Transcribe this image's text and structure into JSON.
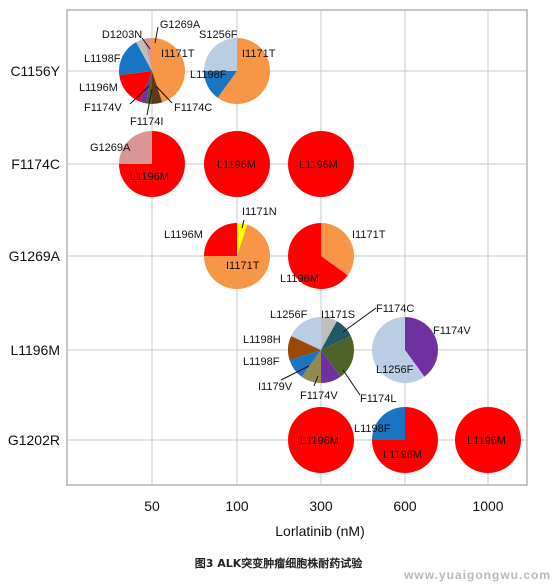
{
  "chart_data": {
    "type": "scatter",
    "subtype": "pie-matrix",
    "xlabel": "Lorlatinib (nM)",
    "x_ticks": [
      "50",
      "100",
      "300",
      "600",
      "1000"
    ],
    "y_ticks": [
      "C1156Y",
      "F1174C",
      "G1269A",
      "L1196M",
      "G1202R"
    ],
    "grid": true,
    "colors": {
      "red": "#ff0000",
      "orange": "#f79646",
      "blue": "#1a74c4",
      "lightblue": "#b9cde4",
      "pink": "#d99694",
      "yellow": "#ffff00",
      "purple": "#7030a0",
      "darkbrown": "#5b3a1a",
      "brown": "#984807",
      "darkteal": "#215868",
      "olive": "#4f6228",
      "khaki": "#938953",
      "grey": "#bfbfbf"
    },
    "pies": [
      {
        "x": "50",
        "y": "C1156Y",
        "slices": [
          {
            "label": "I1171T",
            "value": 45,
            "color": "orange"
          },
          {
            "label": "F1174C",
            "value": 5,
            "color": "darkbrown"
          },
          {
            "label": "F1174I",
            "value": 3,
            "color": "olive"
          },
          {
            "label": "F1174V",
            "value": 3,
            "color": "purple"
          },
          {
            "label": "L1196M",
            "value": 17,
            "color": "red"
          },
          {
            "label": "L1198F",
            "value": 19,
            "color": "blue"
          },
          {
            "label": "D1203N",
            "value": 4,
            "color": "grey"
          },
          {
            "label": "G1269A",
            "value": 4,
            "color": "pink"
          }
        ]
      },
      {
        "x": "100",
        "y": "C1156Y",
        "slices": [
          {
            "label": "I1171T",
            "value": 60,
            "color": "orange"
          },
          {
            "label": "L1198F",
            "value": 15,
            "color": "blue"
          },
          {
            "label": "S1256F",
            "value": 25,
            "color": "lightblue"
          }
        ]
      },
      {
        "x": "50",
        "y": "F1174C",
        "slices": [
          {
            "label": "L1196M",
            "value": 75,
            "color": "red"
          },
          {
            "label": "G1269A",
            "value": 25,
            "color": "pink"
          }
        ]
      },
      {
        "x": "100",
        "y": "F1174C",
        "slices": [
          {
            "label": "L1196M",
            "value": 100,
            "color": "red"
          }
        ]
      },
      {
        "x": "300",
        "y": "F1174C",
        "slices": [
          {
            "label": "L1196M",
            "value": 100,
            "color": "red"
          }
        ]
      },
      {
        "x": "100",
        "y": "G1269A",
        "slices": [
          {
            "label": "I1171N",
            "value": 5,
            "color": "yellow"
          },
          {
            "label": "I1171T",
            "value": 70,
            "color": "orange"
          },
          {
            "label": "L1196M",
            "value": 25,
            "color": "red"
          }
        ]
      },
      {
        "x": "300",
        "y": "G1269A",
        "slices": [
          {
            "label": "I1171T",
            "value": 35,
            "color": "orange"
          },
          {
            "label": "L1196M",
            "value": 65,
            "color": "red"
          }
        ]
      },
      {
        "x": "300",
        "y": "L1196M",
        "slices": [
          {
            "label": "I1171S",
            "value": 8,
            "color": "grey"
          },
          {
            "label": "F1174C",
            "value": 10,
            "color": "darkteal"
          },
          {
            "label": "F1174L",
            "value": 22,
            "color": "olive"
          },
          {
            "label": "F1174V",
            "value": 10,
            "color": "purple"
          },
          {
            "label": "I1179V",
            "value": 10,
            "color": "khaki"
          },
          {
            "label": "L1198F",
            "value": 10,
            "color": "blue"
          },
          {
            "label": "L1198H",
            "value": 12,
            "color": "brown"
          },
          {
            "label": "L1256F",
            "value": 18,
            "color": "lightblue"
          }
        ]
      },
      {
        "x": "600",
        "y": "L1196M",
        "slices": [
          {
            "label": "F1174V",
            "value": 40,
            "color": "purple"
          },
          {
            "label": "L1256F",
            "value": 60,
            "color": "lightblue"
          }
        ]
      },
      {
        "x": "300",
        "y": "G1202R",
        "slices": [
          {
            "label": "L1196M",
            "value": 100,
            "color": "red"
          }
        ]
      },
      {
        "x": "600",
        "y": "G1202R",
        "slices": [
          {
            "label": "L1196M",
            "value": 75,
            "color": "red"
          },
          {
            "label": "L1198F",
            "value": 25,
            "color": "blue"
          }
        ]
      },
      {
        "x": "1000",
        "y": "G1202R",
        "slices": [
          {
            "label": "L1196M",
            "value": 100,
            "color": "red"
          }
        ]
      }
    ],
    "labels": [
      {
        "text": "D1203N",
        "x": "50",
        "y": "C1156Y",
        "dx": -30,
        "dy": -37,
        "anchor": "middle",
        "line": [
          -10,
          -33,
          -2,
          -22
        ]
      },
      {
        "text": "G1269A",
        "x": "50",
        "y": "C1156Y",
        "dx": 28,
        "dy": -47,
        "anchor": "middle",
        "line": [
          6,
          -44,
          3,
          -28
        ]
      },
      {
        "text": "I1171T",
        "x": "50",
        "y": "C1156Y",
        "dx": 9,
        "dy": -18,
        "anchor": "start"
      },
      {
        "text": "L1198F",
        "x": "50",
        "y": "C1156Y",
        "dx": -68,
        "dy": -13,
        "anchor": "start"
      },
      {
        "text": "L1196M",
        "x": "50",
        "y": "C1156Y",
        "dx": -73,
        "dy": 16,
        "anchor": "start"
      },
      {
        "text": "F1174V",
        "x": "50",
        "y": "C1156Y",
        "dx": -68,
        "dy": 36,
        "anchor": "start",
        "line": [
          -22,
          33,
          -3,
          15
        ]
      },
      {
        "text": "F1174I",
        "x": "50",
        "y": "C1156Y",
        "dx": -22,
        "dy": 50,
        "anchor": "start",
        "line": [
          -5,
          44,
          0,
          18
        ]
      },
      {
        "text": "F1174C",
        "x": "50",
        "y": "C1156Y",
        "dx": 22,
        "dy": 36,
        "anchor": "start",
        "line": [
          20,
          32,
          4,
          15
        ]
      },
      {
        "text": "S1256F",
        "x": "100",
        "y": "C1156Y",
        "dx": -38,
        "dy": -37,
        "anchor": "start"
      },
      {
        "text": "I1171T",
        "x": "100",
        "y": "C1156Y",
        "dx": 5,
        "dy": -18,
        "anchor": "start"
      },
      {
        "text": "L1198F",
        "x": "100",
        "y": "C1156Y",
        "dx": -47,
        "dy": 3,
        "anchor": "start"
      },
      {
        "text": "G1269A",
        "x": "50",
        "y": "F1174C",
        "dx": -62,
        "dy": -17,
        "anchor": "start"
      },
      {
        "text": "L1196M",
        "x": "50",
        "y": "F1174C",
        "dx": -22,
        "dy": 12,
        "anchor": "start"
      },
      {
        "text": "L1196M",
        "x": "100",
        "y": "F1174C",
        "dx": -20,
        "dy": 0,
        "anchor": "start"
      },
      {
        "text": "L1196M",
        "x": "300",
        "y": "F1174C",
        "dx": -22,
        "dy": 0,
        "anchor": "start"
      },
      {
        "text": "I1171N",
        "x": "100",
        "y": "G1269A",
        "dx": 5,
        "dy": -45,
        "anchor": "start",
        "line": [
          7,
          -36,
          5,
          -28
        ]
      },
      {
        "text": "L1196M",
        "x": "100",
        "y": "G1269A",
        "dx": -73,
        "dy": -22,
        "anchor": "start"
      },
      {
        "text": "I1171T",
        "x": "100",
        "y": "G1269A",
        "dx": -11,
        "dy": 9,
        "anchor": "start"
      },
      {
        "text": "I1171T",
        "x": "300",
        "y": "G1269A",
        "dx": 31,
        "dy": -22,
        "anchor": "start"
      },
      {
        "text": "L1196M",
        "x": "300",
        "y": "G1269A",
        "dx": -41,
        "dy": 22,
        "anchor": "start"
      },
      {
        "text": "L1256F",
        "x": "300",
        "y": "L1196M",
        "dx": -51,
        "dy": -36,
        "anchor": "start"
      },
      {
        "text": "I1171S",
        "x": "300",
        "y": "L1196M",
        "dx": 0,
        "dy": -36,
        "anchor": "start"
      },
      {
        "text": "F1174C",
        "x": "300",
        "y": "L1196M",
        "dx": 55,
        "dy": -42,
        "anchor": "start",
        "line": [
          55,
          -42,
          22,
          -18
        ]
      },
      {
        "text": "L1198H",
        "x": "300",
        "y": "L1196M",
        "dx": -78,
        "dy": -11,
        "anchor": "start"
      },
      {
        "text": "L1198F",
        "x": "300",
        "y": "L1196M",
        "dx": -78,
        "dy": 11,
        "anchor": "start"
      },
      {
        "text": "I1179V",
        "x": "300",
        "y": "L1196M",
        "dx": -63,
        "dy": 36,
        "anchor": "start",
        "line": [
          -40,
          30,
          -12,
          16
        ]
      },
      {
        "text": "F1174V",
        "x": "300",
        "y": "L1196M",
        "dx": -21,
        "dy": 45,
        "anchor": "start",
        "line": [
          -7,
          36,
          -3,
          26
        ]
      },
      {
        "text": "F1174L",
        "x": "300",
        "y": "L1196M",
        "dx": 39,
        "dy": 48,
        "anchor": "start",
        "line": [
          39,
          45,
          22,
          20
        ]
      },
      {
        "text": "F1174V",
        "x": "600",
        "y": "L1196M",
        "dx": 28,
        "dy": -20,
        "anchor": "start"
      },
      {
        "text": "L1256F",
        "x": "600",
        "y": "L1196M",
        "dx": -29,
        "dy": 19,
        "anchor": "start"
      },
      {
        "text": "L1196M",
        "x": "300",
        "y": "G1202R",
        "dx": -21,
        "dy": 0,
        "anchor": "start"
      },
      {
        "text": "L1198F",
        "x": "600",
        "y": "G1202R",
        "dx": -51,
        "dy": -12,
        "anchor": "start"
      },
      {
        "text": "L1196M",
        "x": "600",
        "y": "G1202R",
        "dx": -22,
        "dy": 14,
        "anchor": "start"
      },
      {
        "text": "L1196M",
        "x": "1000",
        "y": "G1202R",
        "dx": -21,
        "dy": 0,
        "anchor": "start"
      }
    ]
  },
  "caption": "图3 ALK突变肿瘤细胞株耐药试验",
  "watermark": "www.yuaigongwu.com"
}
